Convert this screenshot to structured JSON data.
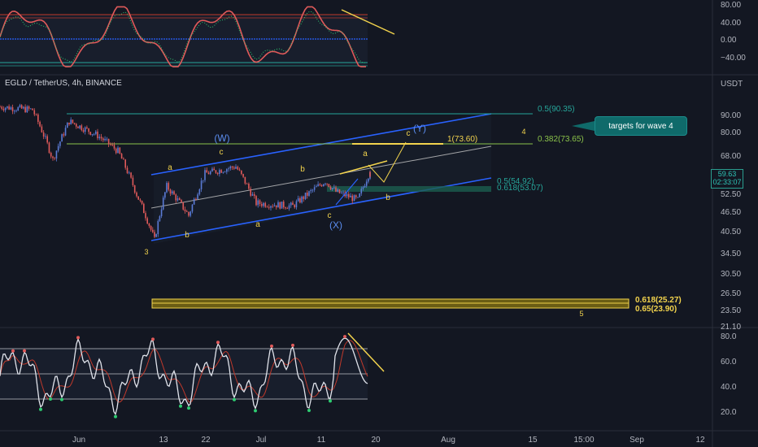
{
  "header": {
    "symbol_line": "EGLD / TetherUS, 4h, BINANCE",
    "currency": "USDT",
    "last_price": "59.63",
    "countdown": "02:33:07"
  },
  "callout": {
    "text": "targets for wave 4"
  },
  "colors": {
    "background": "#131722",
    "channel": "#2962ff",
    "fib": "#26a69a",
    "yellow": "#f2d34d",
    "target_zone": "#b8a42a",
    "bull": "#5b7bd6",
    "bear": "#e05a5a",
    "rsi_line": "#e0e3eb",
    "rsi_ma": "#c0392b"
  },
  "chart_data": [
    {
      "type": "line",
      "title": "",
      "panel": "top-oscillator",
      "ylim": [
        -60,
        90
      ],
      "yticks": [
        "80.00",
        "40.00",
        "0.00",
        "−40.00"
      ],
      "note_levels": [
        60,
        0,
        -40
      ]
    },
    {
      "type": "candlestick",
      "panel": "price",
      "scale": "log",
      "xlabel": "",
      "ylabel": "USDT",
      "xticks": [
        "Jun",
        "13",
        "22",
        "Jul",
        "11",
        "20",
        "Aug",
        "15",
        "15:00",
        "Sep",
        "12"
      ],
      "yticks": [
        "90.00",
        "80.00",
        "68.00",
        "60.00",
        "52.50",
        "46.50",
        "40.50",
        "34.50",
        "30.50",
        "26.50",
        "23.50",
        "21.10"
      ],
      "ylim": [
        20.5,
        110
      ],
      "path_points": [
        {
          "x": "May 23",
          "y": 95
        },
        {
          "x": "May 27",
          "y": 93
        },
        {
          "x": "May 30",
          "y": 66
        },
        {
          "x": "Jun 1",
          "y": 86
        },
        {
          "x": "Jun 5",
          "y": 78
        },
        {
          "x": "Jun 8",
          "y": 70
        },
        {
          "x": "Jun 11",
          "y": 52
        },
        {
          "x": "Jun 13",
          "y": 38
        },
        {
          "x": "Jun 15",
          "y": 55
        },
        {
          "x": "Jun 17",
          "y": 45
        },
        {
          "x": "Jun 20",
          "y": 60
        },
        {
          "x": "Jun 23",
          "y": 63
        },
        {
          "x": "Jun 27",
          "y": 49
        },
        {
          "x": "Jul 1",
          "y": 48
        },
        {
          "x": "Jul 6",
          "y": 57
        },
        {
          "x": "Jul 9",
          "y": 53
        },
        {
          "x": "Jul 12",
          "y": 50
        },
        {
          "x": "Jul 15",
          "y": 61
        },
        {
          "x": "Jul 18",
          "y": 58
        }
      ],
      "fib_levels": [
        {
          "label": "0.5(90.35)",
          "value": 90.35
        },
        {
          "label": "0.382(73.65)",
          "value": 73.65
        },
        {
          "label": "0.5(54.92)",
          "value": 54.92
        },
        {
          "label": "0.618(53.07)",
          "value": 53.07
        },
        {
          "label": "0.618(25.27)",
          "value": 25.27
        },
        {
          "label": "0.65(23.90)",
          "value": 23.9
        }
      ],
      "target_label": "1(73.60)",
      "wave_labels": [
        "(W)",
        "(X)",
        "(Y)",
        "a",
        "b",
        "c",
        "a",
        "b",
        "c",
        "a",
        "b",
        "c",
        "3",
        "4",
        "5"
      ]
    },
    {
      "type": "line",
      "panel": "bottom-oscillator",
      "ylim": [
        10,
        85
      ],
      "yticks": [
        "80.0",
        "60.0",
        "40.0",
        "20.0"
      ],
      "bands": [
        70,
        50,
        30
      ]
    }
  ]
}
